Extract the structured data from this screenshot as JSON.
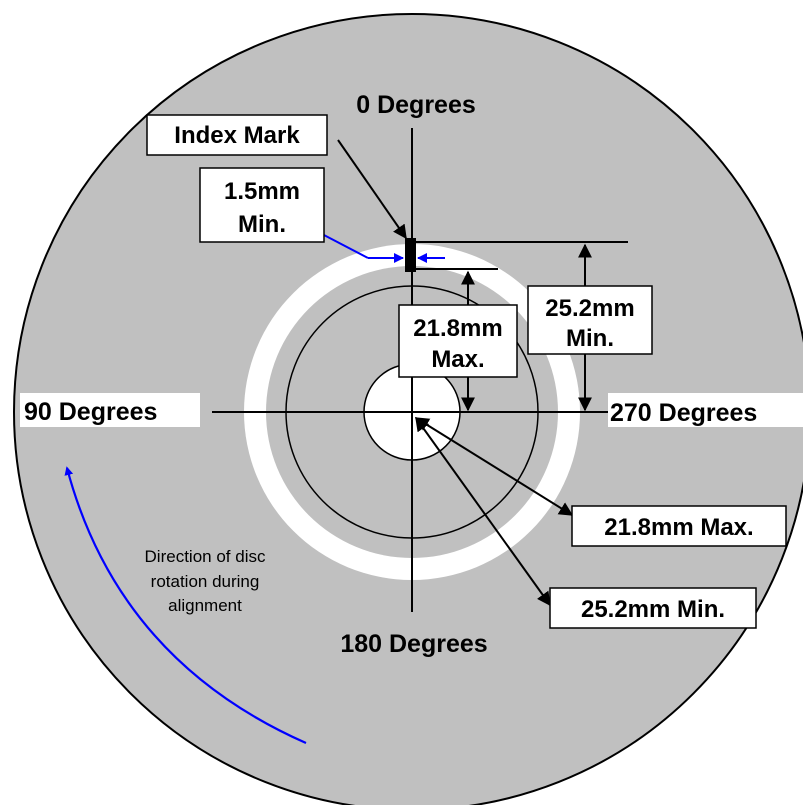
{
  "colors": {
    "disc": "#c0c0c0",
    "clear_ring": "#ffffff",
    "hub": "#ffffff",
    "arrow_blue": "#0000ff",
    "line": "#000000"
  },
  "labels": {
    "deg0": "0 Degrees",
    "deg90": "90 Degrees",
    "deg180": "180 Degrees",
    "deg270": "270 Degrees",
    "index_mark": "Index Mark",
    "width_line1": "1.5mm",
    "width_line2": "Min.",
    "inner_dim_line1": "21.8mm",
    "inner_dim_line2": "Max.",
    "outer_dim_line1": "25.2mm",
    "outer_dim_line2": "Min.",
    "radius_max": "21.8mm Max.",
    "radius_min": "25.2mm Min.",
    "rotation_line1": "Direction of disc",
    "rotation_line2": "rotation during",
    "rotation_line3": "alignment"
  }
}
